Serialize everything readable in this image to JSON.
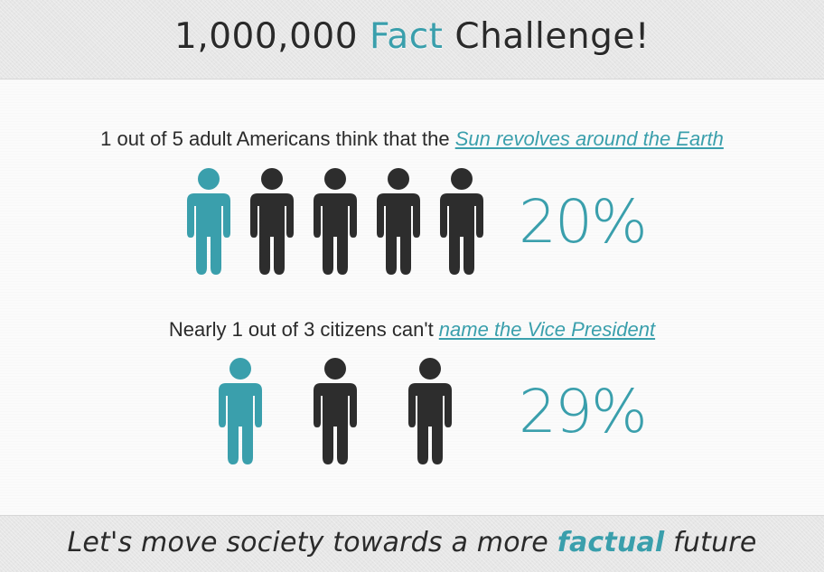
{
  "header": {
    "title_number": "1,000,000",
    "title_accent": "Fact",
    "title_rest": "Challenge!"
  },
  "facts": [
    {
      "text_before": "1 out of 5 adult Americans think that the ",
      "link_text": "Sun revolves around the Earth",
      "percent": "20%",
      "icons": {
        "total": 5,
        "highlighted": 1
      }
    },
    {
      "text_before": "Nearly 1 out of 3 citizens can't ",
      "link_text": "name the Vice President",
      "percent": "29%",
      "icons": {
        "total": 3,
        "highlighted": 1
      }
    }
  ],
  "footer": {
    "tagline_before": "Let's move society towards a more ",
    "tagline_accent": "factual",
    "tagline_after": " future"
  },
  "colors": {
    "accent": "#3a9fac",
    "person_dark": "#2d2d2d",
    "text": "#2a2a2a"
  }
}
